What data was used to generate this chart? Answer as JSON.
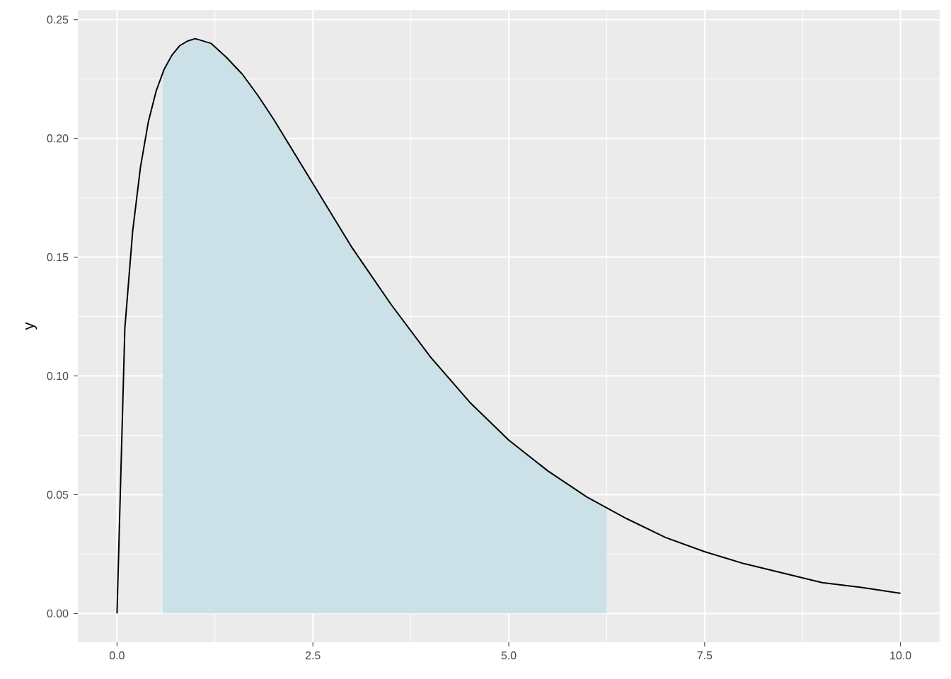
{
  "chart_data": {
    "type": "line",
    "ylabel": "y",
    "grid": true,
    "xlim": [
      -0.5,
      10.5
    ],
    "ylim": [
      -0.0121,
      0.2541
    ],
    "xticks": [
      {
        "value": 0,
        "label": "0.0"
      },
      {
        "value": 2.5,
        "label": "2.5"
      },
      {
        "value": 5,
        "label": "5.0"
      },
      {
        "value": 7.5,
        "label": "7.5"
      },
      {
        "value": 10,
        "label": "10.0"
      }
    ],
    "yticks": [
      {
        "value": 0,
        "label": "0.00"
      },
      {
        "value": 0.05,
        "label": "0.05"
      },
      {
        "value": 0.1,
        "label": "0.10"
      },
      {
        "value": 0.15,
        "label": "0.15"
      },
      {
        "value": 0.2,
        "label": "0.20"
      },
      {
        "value": 0.25,
        "label": "0.25"
      }
    ],
    "series": [
      {
        "type": "area",
        "color": "#cce0e8",
        "x": [
          0.584,
          0.6,
          0.7,
          0.8,
          0.9,
          1.0,
          1.2,
          1.4,
          1.6,
          1.8,
          2.0,
          2.5,
          3.0,
          3.5,
          4.0,
          4.5,
          5.0,
          5.5,
          6.0,
          6.251
        ],
        "values": [
          0.228,
          0.229,
          0.235,
          0.239,
          0.241,
          0.242,
          0.24,
          0.234,
          0.227,
          0.218,
          0.208,
          0.181,
          0.154,
          0.13,
          0.108,
          0.089,
          0.073,
          0.06,
          0.049,
          0.044
        ]
      },
      {
        "color": "#000000",
        "x": [
          0,
          0.1,
          0.2,
          0.3,
          0.4,
          0.5,
          0.6,
          0.7,
          0.8,
          0.9,
          1.0,
          1.2,
          1.4,
          1.6,
          1.8,
          2.0,
          2.5,
          3.0,
          3.5,
          4.0,
          4.5,
          5.0,
          5.5,
          6.0,
          6.5,
          7.0,
          7.5,
          8.0,
          8.5,
          9.0,
          9.5,
          10.0
        ],
        "values": [
          0,
          0.12,
          0.161,
          0.188,
          0.207,
          0.22,
          0.229,
          0.235,
          0.239,
          0.241,
          0.242,
          0.24,
          0.234,
          0.227,
          0.218,
          0.208,
          0.181,
          0.154,
          0.13,
          0.108,
          0.089,
          0.073,
          0.06,
          0.049,
          0.04,
          0.032,
          0.026,
          0.021,
          0.017,
          0.013,
          0.011,
          0.0085
        ]
      }
    ]
  }
}
